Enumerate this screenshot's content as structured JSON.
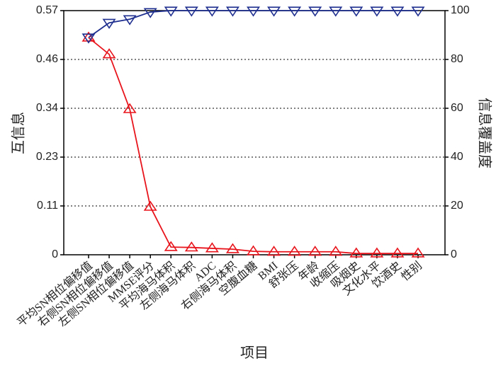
{
  "chart_data": {
    "type": "line",
    "xlabel": "项目",
    "ylabel": "互信息",
    "y2label": "信息覆盖度",
    "categories": [
      "平均SN相位偏移值",
      "右侧SN相位偏移值",
      "左侧SN相位偏移值",
      "MMSE评分",
      "平均海马体积",
      "左侧海马体积",
      "ADC",
      "右侧海马体积",
      "空腹血糖",
      "BMI",
      "舒张压",
      "年龄",
      "收缩压",
      "吸烟史",
      "文化水平",
      "饮酒史",
      "性别"
    ],
    "series": [
      {
        "name": "互信息",
        "color": "#e8141c",
        "marker": "triangle-up",
        "values": [
          0.507,
          0.468,
          0.34,
          0.112,
          0.018,
          0.017,
          0.015,
          0.013,
          0.008,
          0.007,
          0.007,
          0.007,
          0.007,
          0.003,
          0.003,
          0.003,
          0.003
        ]
      },
      {
        "name": "信息覆盖度",
        "color": "#1f2f8f",
        "marker": "triangle-down",
        "axis": "y2",
        "values": [
          89,
          95,
          96.5,
          99.4,
          100,
          100,
          100,
          100,
          100,
          100,
          100,
          100,
          100,
          100,
          100,
          100,
          100
        ]
      }
    ],
    "ylim": [
      0,
      0.57
    ],
    "yticks": [
      0,
      {
        "value": 0.114,
        "label": "0.11"
      },
      {
        "value": 0.228,
        "label": "0.23"
      },
      {
        "value": 0.342,
        "label": "0.34"
      },
      {
        "value": 0.456,
        "label": "0.46"
      },
      0.57
    ],
    "y2lim": [
      0,
      100
    ],
    "y2ticks": [
      0,
      20,
      40,
      60,
      80,
      100
    ],
    "grid": true
  }
}
